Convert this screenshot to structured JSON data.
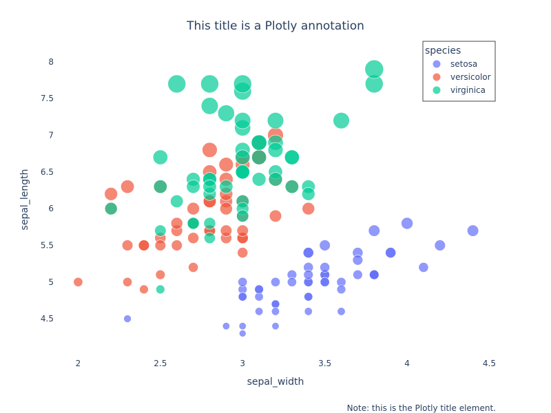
{
  "chart_data": {
    "type": "scatter",
    "title": "This title is a Plotly annotation",
    "note": "Note: this is the Plotly title element.",
    "xlabel": "sepal_width",
    "ylabel": "sepal_length",
    "xlim": [
      1.86,
      4.54
    ],
    "ylim": [
      4.06,
      8.28
    ],
    "xticks": [
      "2",
      "2.5",
      "3",
      "3.5",
      "4",
      "4.5"
    ],
    "yticks": [
      "4.5",
      "5",
      "5.5",
      "6",
      "6.5",
      "7",
      "7.5",
      "8"
    ],
    "grid": false,
    "legend": {
      "title": "species",
      "placement": "top-right"
    },
    "marker_size_encodes": "sepal_length",
    "series": [
      {
        "name": "setosa",
        "color": "#636efa",
        "points": [
          [
            3.5,
            5.1
          ],
          [
            3.0,
            4.9
          ],
          [
            3.2,
            4.7
          ],
          [
            3.1,
            4.6
          ],
          [
            3.6,
            5.0
          ],
          [
            3.9,
            5.4
          ],
          [
            3.4,
            4.6
          ],
          [
            3.4,
            5.0
          ],
          [
            2.9,
            4.4
          ],
          [
            3.1,
            4.9
          ],
          [
            3.7,
            5.4
          ],
          [
            3.4,
            4.8
          ],
          [
            3.0,
            4.8
          ],
          [
            3.0,
            4.3
          ],
          [
            4.0,
            5.8
          ],
          [
            4.4,
            5.7
          ],
          [
            3.9,
            5.4
          ],
          [
            3.5,
            5.1
          ],
          [
            3.8,
            5.7
          ],
          [
            3.8,
            5.1
          ],
          [
            3.4,
            5.4
          ],
          [
            3.7,
            5.1
          ],
          [
            3.6,
            4.6
          ],
          [
            3.3,
            5.1
          ],
          [
            3.4,
            4.8
          ],
          [
            3.0,
            5.0
          ],
          [
            3.4,
            5.0
          ],
          [
            3.5,
            5.2
          ],
          [
            3.4,
            5.2
          ],
          [
            3.2,
            4.7
          ],
          [
            3.1,
            4.8
          ],
          [
            3.4,
            5.4
          ],
          [
            4.1,
            5.2
          ],
          [
            4.2,
            5.5
          ],
          [
            3.1,
            4.9
          ],
          [
            3.2,
            5.0
          ],
          [
            3.5,
            5.5
          ],
          [
            3.6,
            4.9
          ],
          [
            3.0,
            4.4
          ],
          [
            3.4,
            5.1
          ],
          [
            3.5,
            5.0
          ],
          [
            2.3,
            4.5
          ],
          [
            3.2,
            4.4
          ],
          [
            3.5,
            5.0
          ],
          [
            3.8,
            5.1
          ],
          [
            3.0,
            4.8
          ],
          [
            3.8,
            5.1
          ],
          [
            3.2,
            4.6
          ],
          [
            3.7,
            5.3
          ],
          [
            3.3,
            5.0
          ]
        ]
      },
      {
        "name": "versicolor",
        "color": "#ef553b",
        "points": [
          [
            3.2,
            7.0
          ],
          [
            3.2,
            6.4
          ],
          [
            3.1,
            6.9
          ],
          [
            2.3,
            5.5
          ],
          [
            2.8,
            6.5
          ],
          [
            2.8,
            5.7
          ],
          [
            3.3,
            6.3
          ],
          [
            2.4,
            4.9
          ],
          [
            2.9,
            6.6
          ],
          [
            2.7,
            5.2
          ],
          [
            2.0,
            5.0
          ],
          [
            3.0,
            5.9
          ],
          [
            2.2,
            6.0
          ],
          [
            2.9,
            6.1
          ],
          [
            2.9,
            5.6
          ],
          [
            3.1,
            6.7
          ],
          [
            3.0,
            5.6
          ],
          [
            2.7,
            5.8
          ],
          [
            2.2,
            6.2
          ],
          [
            2.5,
            5.6
          ],
          [
            3.2,
            5.9
          ],
          [
            2.8,
            6.1
          ],
          [
            2.5,
            6.3
          ],
          [
            2.8,
            6.1
          ],
          [
            2.9,
            6.4
          ],
          [
            3.0,
            6.6
          ],
          [
            2.8,
            6.8
          ],
          [
            3.0,
            6.7
          ],
          [
            2.9,
            6.0
          ],
          [
            2.6,
            5.7
          ],
          [
            2.4,
            5.5
          ],
          [
            2.4,
            5.5
          ],
          [
            2.7,
            5.8
          ],
          [
            2.7,
            6.0
          ],
          [
            3.0,
            5.4
          ],
          [
            3.4,
            6.0
          ],
          [
            3.1,
            6.7
          ],
          [
            2.3,
            6.3
          ],
          [
            3.0,
            5.6
          ],
          [
            2.5,
            5.5
          ],
          [
            2.6,
            5.5
          ],
          [
            3.0,
            6.1
          ],
          [
            2.6,
            5.8
          ],
          [
            2.3,
            5.0
          ],
          [
            2.7,
            5.6
          ],
          [
            3.0,
            5.7
          ],
          [
            2.9,
            5.7
          ],
          [
            2.9,
            6.2
          ],
          [
            2.5,
            5.1
          ],
          [
            2.8,
            5.7
          ]
        ]
      },
      {
        "name": "virginica",
        "color": "#00cc96",
        "points": [
          [
            3.3,
            6.3
          ],
          [
            2.7,
            5.8
          ],
          [
            3.0,
            7.1
          ],
          [
            2.9,
            6.3
          ],
          [
            3.0,
            6.5
          ],
          [
            3.0,
            7.6
          ],
          [
            2.5,
            4.9
          ],
          [
            2.9,
            7.3
          ],
          [
            2.5,
            6.7
          ],
          [
            3.6,
            7.2
          ],
          [
            3.2,
            6.5
          ],
          [
            2.7,
            6.4
          ],
          [
            3.0,
            6.8
          ],
          [
            2.5,
            5.7
          ],
          [
            2.8,
            5.8
          ],
          [
            3.2,
            6.4
          ],
          [
            3.0,
            6.5
          ],
          [
            3.8,
            7.7
          ],
          [
            2.6,
            7.7
          ],
          [
            2.2,
            6.0
          ],
          [
            3.2,
            6.9
          ],
          [
            2.8,
            5.6
          ],
          [
            2.8,
            7.7
          ],
          [
            2.7,
            6.3
          ],
          [
            3.3,
            6.7
          ],
          [
            3.2,
            7.2
          ],
          [
            2.8,
            6.2
          ],
          [
            3.0,
            6.1
          ],
          [
            2.8,
            6.4
          ],
          [
            3.0,
            7.2
          ],
          [
            2.8,
            7.4
          ],
          [
            3.8,
            7.9
          ],
          [
            2.8,
            6.4
          ],
          [
            2.8,
            6.3
          ],
          [
            2.6,
            6.1
          ],
          [
            3.0,
            7.7
          ],
          [
            3.4,
            6.3
          ],
          [
            3.1,
            6.4
          ],
          [
            3.0,
            6.0
          ],
          [
            3.1,
            6.9
          ],
          [
            3.1,
            6.7
          ],
          [
            3.1,
            6.9
          ],
          [
            2.7,
            5.8
          ],
          [
            3.2,
            6.8
          ],
          [
            3.3,
            6.7
          ],
          [
            3.0,
            6.7
          ],
          [
            2.5,
            6.3
          ],
          [
            3.0,
            6.5
          ],
          [
            3.4,
            6.2
          ],
          [
            3.0,
            5.9
          ]
        ]
      }
    ]
  }
}
